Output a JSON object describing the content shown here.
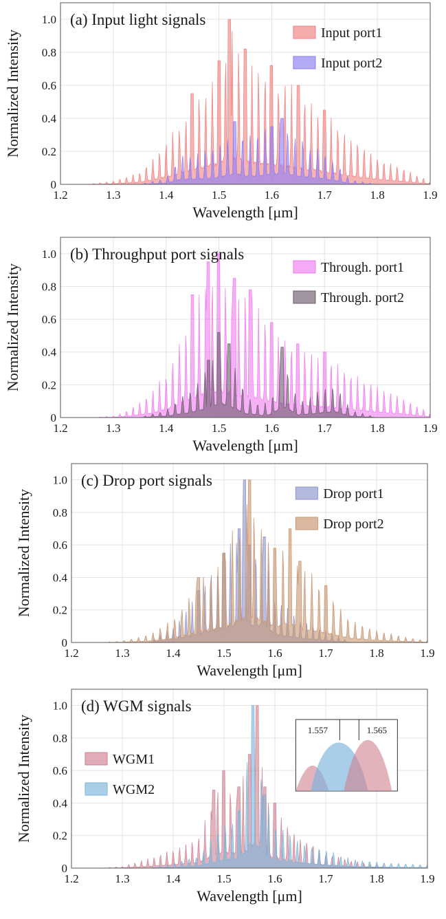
{
  "chart_data": [
    {
      "type": "area",
      "title": "(a) Input light signals",
      "xlabel": "Wavelength [μm]",
      "ylabel": "Normalized Intensity",
      "xlim": [
        1.2,
        1.9
      ],
      "ylim": [
        0,
        1.1
      ],
      "xticks": [
        "1.2",
        "1.3",
        "1.4",
        "1.5",
        "1.6",
        "1.7",
        "1.8",
        "1.9"
      ],
      "yticks": [
        "0",
        "0.2",
        "0.4",
        "0.6",
        "0.8",
        "1.0"
      ],
      "grid": true,
      "legend_position": "top-right",
      "series": [
        {
          "name": "Input port1",
          "color": "#f08080",
          "x": [
            1.25,
            1.3,
            1.35,
            1.4,
            1.45,
            1.5,
            1.52,
            1.55,
            1.6,
            1.65,
            1.7,
            1.75,
            1.8,
            1.85,
            1.9
          ],
          "y": [
            0.0,
            0.02,
            0.08,
            0.26,
            0.55,
            0.75,
            1.0,
            0.82,
            0.72,
            0.6,
            0.45,
            0.3,
            0.18,
            0.1,
            0.02
          ]
        },
        {
          "name": "Input port2",
          "color": "#8a7cf5",
          "x": [
            1.35,
            1.4,
            1.43,
            1.45,
            1.5,
            1.53,
            1.55,
            1.6,
            1.62,
            1.65,
            1.7,
            1.75,
            1.8
          ],
          "y": [
            0.0,
            0.04,
            0.2,
            0.18,
            0.25,
            0.38,
            0.3,
            0.35,
            0.4,
            0.3,
            0.2,
            0.03,
            0.0
          ]
        }
      ]
    },
    {
      "type": "area",
      "title": "(b) Throughput port signals",
      "xlabel": "Wavelength [μm]",
      "ylabel": "Normalized Intensity",
      "xlim": [
        1.2,
        1.9
      ],
      "ylim": [
        0,
        1.1
      ],
      "xticks": [
        "1.2",
        "1.3",
        "1.4",
        "1.5",
        "1.6",
        "1.7",
        "1.8",
        "1.9"
      ],
      "yticks": [
        "0",
        "0.2",
        "0.4",
        "0.6",
        "0.8",
        "1.0"
      ],
      "grid": true,
      "legend_position": "top-right",
      "series": [
        {
          "name": "Through. port1",
          "color": "#f07cf0",
          "x": [
            1.3,
            1.33,
            1.37,
            1.4,
            1.45,
            1.48,
            1.5,
            1.53,
            1.56,
            1.6,
            1.65,
            1.7,
            1.75,
            1.8,
            1.85,
            1.9
          ],
          "y": [
            0.01,
            0.05,
            0.15,
            0.3,
            0.75,
            0.95,
            1.0,
            0.85,
            0.78,
            0.58,
            0.45,
            0.4,
            0.3,
            0.2,
            0.12,
            0.03
          ]
        },
        {
          "name": "Through. port2",
          "color": "#6e5a6e",
          "x": [
            1.35,
            1.4,
            1.45,
            1.48,
            1.5,
            1.52,
            1.55,
            1.58,
            1.6,
            1.62,
            1.65,
            1.68,
            1.72,
            1.75,
            1.8
          ],
          "y": [
            0.0,
            0.05,
            0.2,
            0.35,
            0.52,
            0.45,
            0.15,
            0.08,
            0.12,
            0.43,
            0.1,
            0.15,
            0.22,
            0.05,
            0.0
          ]
        }
      ]
    },
    {
      "type": "area",
      "title": "(c) Drop port signals",
      "xlabel": "Wavelength [μm]",
      "ylabel": "Normalized Intensity",
      "xlim": [
        1.2,
        1.9
      ],
      "ylim": [
        0,
        1.1
      ],
      "xticks": [
        "1.2",
        "1.3",
        "1.4",
        "1.5",
        "1.6",
        "1.7",
        "1.8",
        "1.9"
      ],
      "yticks": [
        "0",
        "0.2",
        "0.4",
        "0.6",
        "0.8",
        "1.0"
      ],
      "grid": true,
      "legend_position": "top-right",
      "series": [
        {
          "name": "Drop port1",
          "color": "#8c94cc",
          "x": [
            1.35,
            1.4,
            1.45,
            1.5,
            1.53,
            1.54,
            1.55,
            1.58,
            1.6,
            1.65,
            1.7,
            1.75
          ],
          "y": [
            0.0,
            0.1,
            0.32,
            0.55,
            0.7,
            1.0,
            0.6,
            0.65,
            0.3,
            0.15,
            0.08,
            0.0
          ]
        },
        {
          "name": "Drop port2",
          "color": "#c8946e",
          "x": [
            1.3,
            1.35,
            1.4,
            1.45,
            1.5,
            1.55,
            1.6,
            1.63,
            1.65,
            1.7,
            1.75,
            1.8,
            1.85,
            1.9
          ],
          "y": [
            0.01,
            0.05,
            0.15,
            0.4,
            0.55,
            1.0,
            0.58,
            0.7,
            0.5,
            0.35,
            0.15,
            0.08,
            0.04,
            0.01
          ]
        }
      ]
    },
    {
      "type": "area",
      "title": "(d) WGM signals",
      "xlabel": "Wavelength [μm]",
      "ylabel": "Normalized Intensity",
      "xlim": [
        1.2,
        1.9
      ],
      "ylim": [
        0,
        1.1
      ],
      "xticks": [
        "1.2",
        "1.3",
        "1.4",
        "1.5",
        "1.6",
        "1.7",
        "1.8",
        "1.9"
      ],
      "yticks": [
        "0",
        "0.2",
        "0.4",
        "0.6",
        "0.8",
        "1.0"
      ],
      "grid": true,
      "legend_position": "left",
      "inset_labels": [
        "1.557",
        "1.565"
      ],
      "series": [
        {
          "name": "WGM1",
          "color": "#d08090",
          "x": [
            1.3,
            1.35,
            1.4,
            1.45,
            1.48,
            1.5,
            1.53,
            1.55,
            1.565,
            1.58,
            1.6,
            1.65,
            1.7,
            1.75,
            1.8
          ],
          "y": [
            0.01,
            0.06,
            0.12,
            0.2,
            0.48,
            0.6,
            0.5,
            0.7,
            1.0,
            0.5,
            0.4,
            0.2,
            0.1,
            0.05,
            0.02
          ]
        },
        {
          "name": "WGM2",
          "color": "#7ab4dc",
          "x": [
            1.35,
            1.4,
            1.45,
            1.5,
            1.53,
            1.557,
            1.58,
            1.6,
            1.65,
            1.7,
            1.75,
            1.8,
            1.85,
            1.9
          ],
          "y": [
            0.0,
            0.03,
            0.08,
            0.3,
            0.35,
            1.0,
            0.45,
            0.3,
            0.18,
            0.12,
            0.06,
            0.04,
            0.03,
            0.02
          ]
        }
      ]
    }
  ]
}
